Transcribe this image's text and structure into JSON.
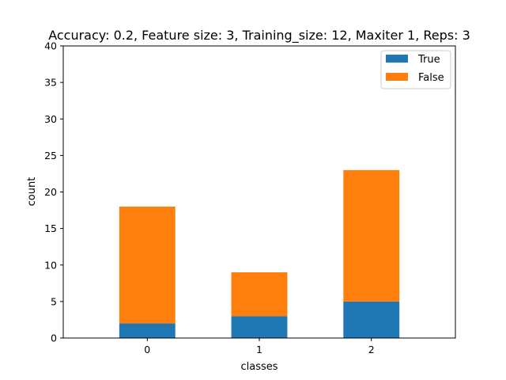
{
  "chart_data": {
    "type": "bar",
    "stacked": true,
    "title": "Accuracy: 0.2, Feature size: 3, Training_size: 12, Maxiter 1, Reps: 3",
    "xlabel": "classes",
    "ylabel": "count",
    "categories": [
      "0",
      "1",
      "2"
    ],
    "series": [
      {
        "name": "True",
        "values": [
          2,
          3,
          5
        ],
        "color": "#1f77b4"
      },
      {
        "name": "False",
        "values": [
          16,
          6,
          18
        ],
        "color": "#ff7f0e"
      }
    ],
    "ylim": [
      0,
      40
    ],
    "yticks": [
      0,
      5,
      10,
      15,
      20,
      25,
      30,
      35,
      40
    ],
    "grid": false,
    "legend_position": "top-right"
  }
}
